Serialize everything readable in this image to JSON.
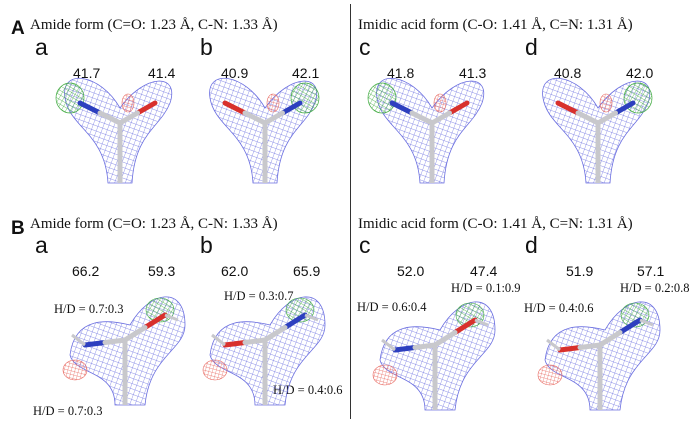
{
  "colors": {
    "mesh": "#6b6fe0",
    "positive_density": "#3faa3f",
    "negative_density": "#e8665e",
    "carbon": "#c8c8cc",
    "nitrogen": "#2d3fbf",
    "oxygen": "#d8302c",
    "divider": "#333333"
  },
  "panels": [
    {
      "letter": "A",
      "left_title": "Amide form (C=O: 1.23 Å, C-N: 1.33 Å)",
      "right_title": "Imidic acid form (C-O: 1.41 Å, C=N: 1.31 Å)",
      "subpanels": [
        {
          "label": "a",
          "values": [
            "41.7",
            "41.4"
          ],
          "hd": []
        },
        {
          "label": "b",
          "values": [
            "40.9",
            "42.1"
          ],
          "hd": []
        },
        {
          "label": "c",
          "values": [
            "41.8",
            "41.3"
          ],
          "hd": []
        },
        {
          "label": "d",
          "values": [
            "40.8",
            "42.0"
          ],
          "hd": []
        }
      ]
    },
    {
      "letter": "B",
      "left_title": "Amide form (C=O: 1.23 Å, C-N: 1.33 Å)",
      "right_title": "Imidic acid form (C-O: 1.41 Å, C=N: 1.31 Å)",
      "subpanels": [
        {
          "label": "a",
          "values": [
            "66.2",
            "59.3"
          ],
          "hd": [
            "H/D = 0.7:0.3",
            "H/D = 0.7:0.3"
          ]
        },
        {
          "label": "b",
          "values": [
            "62.0",
            "65.9"
          ],
          "hd": [
            "H/D = 0.3:0.7",
            "H/D = 0.4:0.6"
          ]
        },
        {
          "label": "c",
          "values": [
            "52.0",
            "47.4"
          ],
          "hd": [
            "H/D = 0.6:0.4",
            "H/D = 0.1:0.9"
          ]
        },
        {
          "label": "d",
          "values": [
            "51.9",
            "57.1"
          ],
          "hd": [
            "H/D = 0.4:0.6",
            "H/D = 0.2:0.8"
          ]
        }
      ]
    }
  ]
}
